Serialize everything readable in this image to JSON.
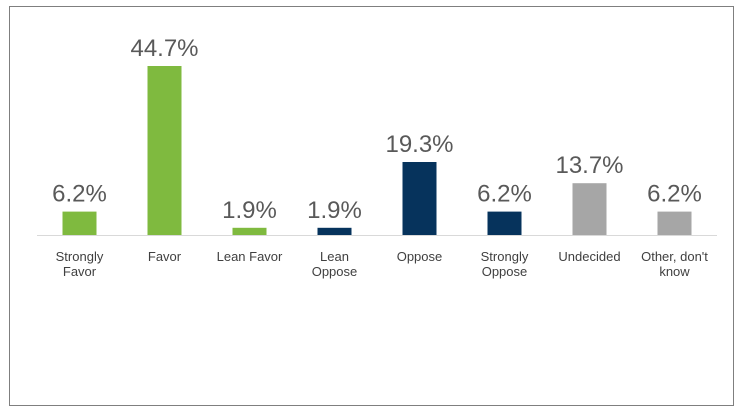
{
  "chart_data": {
    "type": "bar",
    "title": "",
    "xlabel": "",
    "ylabel": "",
    "ylim": [
      0,
      44.7
    ],
    "grid": false,
    "legend": "none",
    "value_format": "{v}%",
    "categories": [
      {
        "lines": [
          "Strongly",
          "Favor"
        ]
      },
      {
        "lines": [
          "Favor"
        ]
      },
      {
        "lines": [
          "Lean Favor"
        ]
      },
      {
        "lines": [
          "Lean",
          "Oppose"
        ]
      },
      {
        "lines": [
          "Oppose"
        ]
      },
      {
        "lines": [
          "Strongly",
          "Oppose"
        ]
      },
      {
        "lines": [
          "Undecided"
        ]
      },
      {
        "lines": [
          "Other, don't",
          "know"
        ]
      }
    ],
    "values": [
      6.2,
      44.7,
      1.9,
      1.9,
      19.3,
      6.2,
      13.7,
      6.2
    ],
    "value_labels": [
      "6.2%",
      "44.7%",
      "1.9%",
      "1.9%",
      "19.3%",
      "6.2%",
      "13.7%",
      "6.2%"
    ],
    "colors": [
      "#7fba3f",
      "#7fba3f",
      "#7fba3f",
      "#06335c",
      "#06335c",
      "#06335c",
      "#a6a6a6",
      "#a6a6a6"
    ],
    "axis_color": "#d9d9d9"
  }
}
